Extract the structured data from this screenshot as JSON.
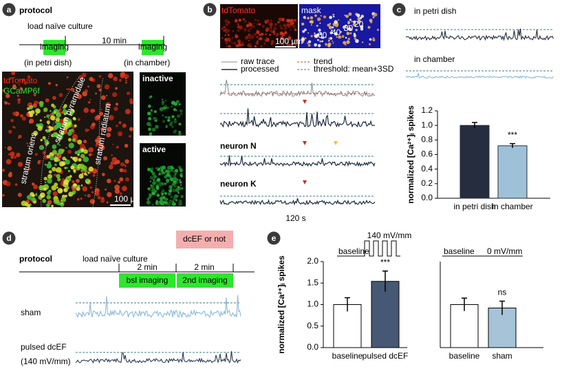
{
  "panels": {
    "a": {
      "label": "a",
      "title": "protocol",
      "step": "load naïve culture",
      "interval": "10 min",
      "imaging": [
        "imaging",
        "imaging"
      ],
      "locations": [
        "(in petri dish)",
        "(in chamber)"
      ],
      "stains": [
        "tdTomato",
        "GCaMP6f"
      ],
      "regions": [
        "stratum oriens",
        "stratum pyramidale",
        "stratum radiatum"
      ],
      "insets": [
        "inactive",
        "active"
      ],
      "scale": "100 µm"
    },
    "b": {
      "label": "b",
      "images": [
        "tdTomato",
        "mask"
      ],
      "mask_numbers": [
        "20",
        "30",
        "40",
        "60"
      ],
      "scale": "100 µm",
      "legend": [
        "raw trace",
        "trend",
        "processed",
        "threshold: mean+3SD"
      ],
      "neurons": [
        "neuron N",
        "neuron K"
      ],
      "time": "120 s"
    },
    "c": {
      "label": "c",
      "conditions": [
        "in petri dish",
        "in chamber"
      ]
    },
    "d": {
      "label": "d",
      "title": "protocol",
      "step": "load naïve culture",
      "intervals": [
        "2 min",
        "2 min"
      ],
      "stimulus": "dcEF or not",
      "imaging": [
        "bsl imaging",
        "2nd imaging"
      ],
      "conditions": [
        "sham",
        "pulsed dcEF"
      ],
      "field": "(140 mV/mm)"
    },
    "e": {
      "label": "e"
    }
  },
  "chart_data": [
    {
      "type": "bar",
      "ylabel": "normalized [Ca²⁺]ᵢ spikes",
      "categories": [
        "in petri dish",
        "in chamber"
      ],
      "values": [
        1.0,
        0.72
      ],
      "errors": [
        0.04,
        0.03
      ],
      "colors": [
        "#262d3e",
        "#9fc1d8"
      ],
      "edgecolor": "#262d3e",
      "ylim": [
        0,
        1.2
      ],
      "yticks": [
        {
          "value": 0,
          "label": "0.0"
        },
        0.2,
        0.4,
        0.6,
        0.8,
        {
          "value": 1,
          "label": "1.0"
        },
        1.2
      ],
      "annotations": [
        {
          "text": "***",
          "category": "in chamber"
        }
      ]
    },
    {
      "type": "bar",
      "ylabel": "normalized [Ca²⁺]ᵢ spikes",
      "categories": [
        "baseline",
        "pulsed dcEF"
      ],
      "values": [
        1.0,
        1.54
      ],
      "errors": [
        0.16,
        0.24
      ],
      "colors": [
        "#ffffff",
        "#465873"
      ],
      "edgecolor": "#000000",
      "ylim": [
        0,
        2
      ],
      "yticks": [
        {
          "value": 0,
          "label": "0.0"
        },
        0.5,
        {
          "value": 1,
          "label": "1.0"
        },
        1.5,
        {
          "value": 2,
          "label": "2.0"
        }
      ],
      "annotations": [
        {
          "text": "***",
          "category": "pulsed dcEF"
        }
      ],
      "stimulus": {
        "start": "baseline",
        "amplitude": "140 mV/mm"
      }
    },
    {
      "type": "bar",
      "categories": [
        "baseline",
        "sham"
      ],
      "values": [
        1.0,
        0.92
      ],
      "errors": [
        0.15,
        0.16
      ],
      "colors": [
        "#ffffff",
        "#a6c3d7"
      ],
      "edgecolor": "#000000",
      "ylim": [
        0,
        2
      ],
      "yticks": [],
      "annotations": [
        {
          "text": "ns",
          "category": "sham"
        }
      ],
      "stimulus": {
        "start": "baseline",
        "amplitude": "0 mV/mm"
      }
    }
  ]
}
